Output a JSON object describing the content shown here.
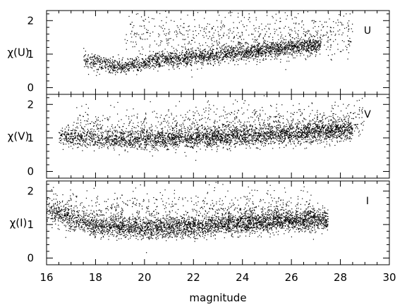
{
  "chart_data": {
    "type": "scatter",
    "xlabel": "magnitude",
    "x_ticks": [
      "16",
      "18",
      "20",
      "22",
      "24",
      "26",
      "28",
      "30"
    ],
    "xlim": [
      16,
      30
    ],
    "grid": false,
    "marker_color": "#000000",
    "panels": [
      {
        "band": "U",
        "ylabel": "χ(U)",
        "ylim": [
          -0.2,
          2.3
        ],
        "y_ticks": [
          "0",
          "1",
          "2"
        ],
        "clouds": [
          {
            "x_range": [
              17.5,
              27.2
            ],
            "y_at_x": [
              [
                17.5,
                0.85
              ],
              [
                19,
                0.6
              ],
              [
                20,
                0.75
              ],
              [
                22,
                0.9
              ],
              [
                24,
                1.05
              ],
              [
                25.5,
                1.15
              ],
              [
                26,
                1.2
              ],
              [
                27,
                1.25
              ]
            ],
            "scatter": 0.12,
            "count": 2400
          },
          {
            "x_range": [
              19.2,
              28.5
            ],
            "y_at_x": [
              [
                19.2,
                1.6
              ],
              [
                22,
                1.5
              ],
              [
                24,
                1.55
              ],
              [
                26,
                1.6
              ],
              [
                28.5,
                1.6
              ]
            ],
            "scatter": 0.35,
            "count": 650
          }
        ]
      },
      {
        "band": "V",
        "ylabel": "χ(V)",
        "ylim": [
          -0.2,
          2.3
        ],
        "y_ticks": [
          "0",
          "1",
          "2"
        ],
        "clouds": [
          {
            "x_range": [
              16.5,
              28.5
            ],
            "y_at_x": [
              [
                16.5,
                1.05
              ],
              [
                18,
                0.98
              ],
              [
                20,
                0.95
              ],
              [
                22,
                0.98
              ],
              [
                24,
                1.05
              ],
              [
                26,
                1.12
              ],
              [
                27.5,
                1.2
              ],
              [
                28.5,
                1.25
              ]
            ],
            "scatter": 0.15,
            "count": 3200
          },
          {
            "x_range": [
              17.2,
              29.0
            ],
            "y_at_x": [
              [
                17.2,
                1.4
              ],
              [
                20,
                1.3
              ],
              [
                24,
                1.4
              ],
              [
                27,
                1.45
              ],
              [
                29,
                1.6
              ]
            ],
            "scatter": 0.3,
            "count": 900
          }
        ]
      },
      {
        "band": "I",
        "ylabel": "χ(I)",
        "ylim": [
          -0.2,
          2.3
        ],
        "y_ticks": [
          "0",
          "1",
          "2"
        ],
        "clouds": [
          {
            "x_range": [
              16.0,
              27.5
            ],
            "y_at_x": [
              [
                16,
                1.45
              ],
              [
                17,
                1.15
              ],
              [
                18,
                0.95
              ],
              [
                20,
                0.88
              ],
              [
                22,
                0.93
              ],
              [
                24,
                1.05
              ],
              [
                26,
                1.12
              ],
              [
                27.5,
                1.15
              ]
            ],
            "scatter": 0.15,
            "count": 3400
          },
          {
            "x_range": [
              16.0,
              27.0
            ],
            "y_at_x": [
              [
                16,
                1.6
              ],
              [
                18,
                1.4
              ],
              [
                21,
                1.35
              ],
              [
                24,
                1.35
              ],
              [
                27,
                1.3
              ]
            ],
            "scatter": 0.3,
            "count": 900
          }
        ]
      }
    ]
  }
}
